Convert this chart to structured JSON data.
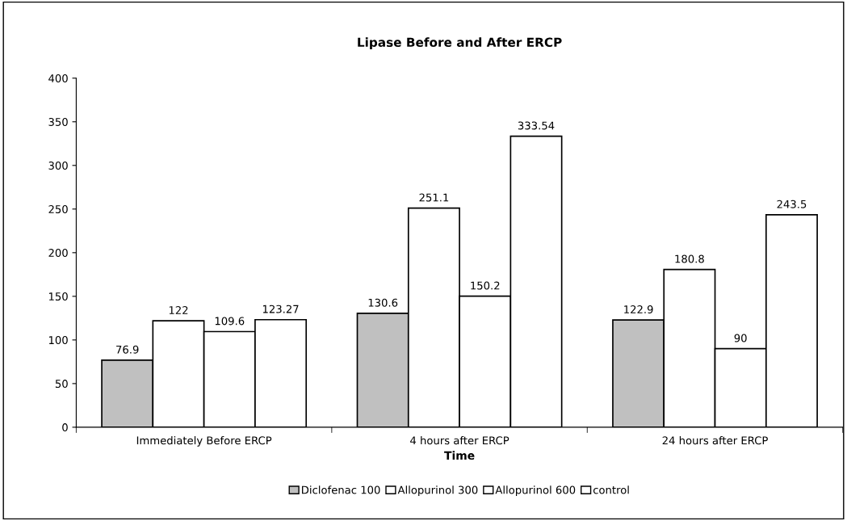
{
  "chart_data": {
    "type": "bar",
    "title": "Lipase Before and After ERCP",
    "xlabel": "Time",
    "categories": [
      "Immediately Before ERCP",
      "4 hours after ERCP",
      "24 hours after ERCP"
    ],
    "series": [
      {
        "name": "Diclofenac 100",
        "color": "#c0c0c0",
        "values": [
          76.9,
          130.6,
          122.9
        ]
      },
      {
        "name": "Allopurinol 300",
        "color": "#ffffff",
        "values": [
          122,
          251.1,
          180.8
        ]
      },
      {
        "name": "Allopurinol 600",
        "color": "#ffffff",
        "values": [
          109.6,
          150.2,
          90
        ]
      },
      {
        "name": "control",
        "color": "#ffffff",
        "values": [
          123.27,
          333.54,
          243.5
        ]
      }
    ],
    "ylim": [
      0,
      400
    ],
    "yticks": [
      0,
      50,
      100,
      150,
      200,
      250,
      300,
      350,
      400
    ],
    "data_labels": true,
    "grid": false,
    "legend": "bottom"
  }
}
